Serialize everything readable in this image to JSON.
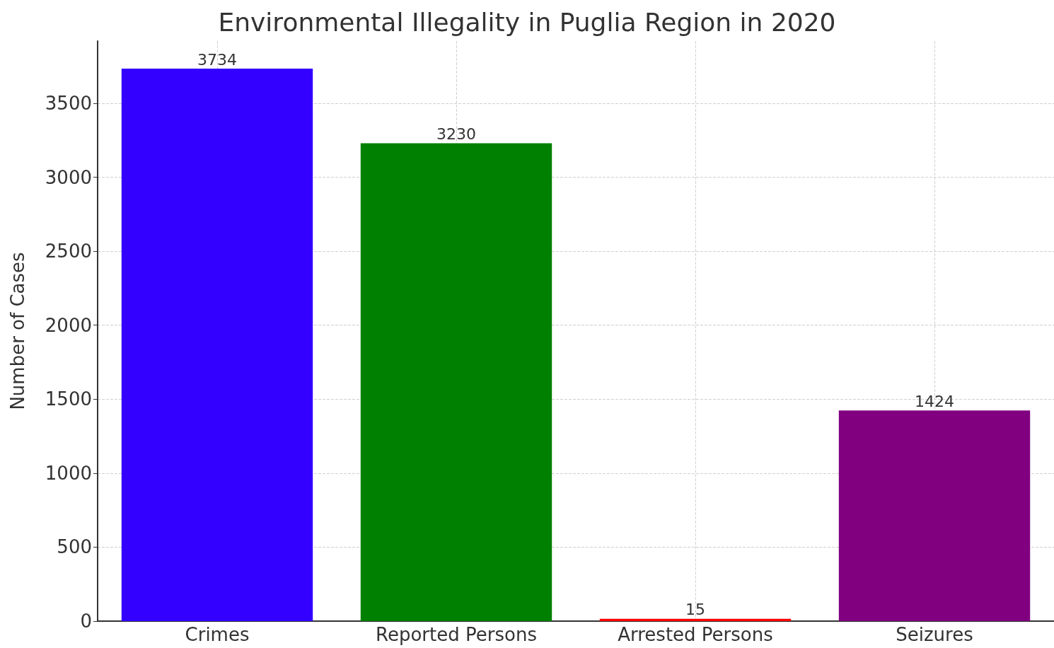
{
  "chart_data": {
    "type": "bar",
    "title": "Environmental Illegality in Puglia Region in 2020",
    "ylabel": "Number of Cases",
    "categories": [
      "Crimes",
      "Reported Persons",
      "Arrested Persons",
      "Seizures"
    ],
    "values": [
      3734,
      3230,
      15,
      1424
    ],
    "colors": [
      "#3300ff",
      "#008000",
      "#ff0000",
      "#800080"
    ],
    "ylim": [
      0,
      3921
    ],
    "yticks": [
      0,
      500,
      1000,
      1500,
      2000,
      2500,
      3000,
      3500
    ],
    "grid": true,
    "data_labels": true
  }
}
